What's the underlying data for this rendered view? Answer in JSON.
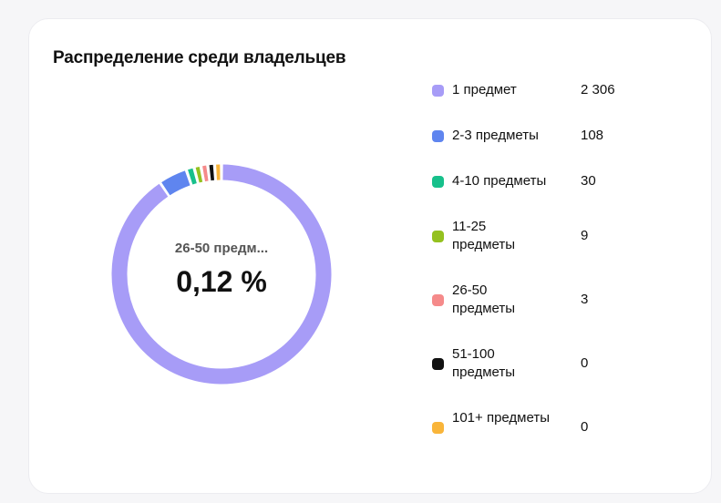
{
  "card": {
    "title": "Распределение среди владельцев"
  },
  "donut": {
    "center_label": "26-50 предм...",
    "center_value": "0,12 %"
  },
  "chart_data": {
    "type": "pie",
    "title": "Распределение среди владельцев",
    "categories": [
      "1 предмет",
      "2-3 предметы",
      "4-10 предметы",
      "11-25 предметы",
      "26-50 предметы",
      "51-100 предметы",
      "101+ предметы"
    ],
    "value_labels": [
      "2 306",
      "108",
      "30",
      "9",
      "3",
      "0",
      "0"
    ],
    "values": [
      2306,
      108,
      30,
      9,
      3,
      0,
      0
    ],
    "colors": [
      "#a79cf7",
      "#5f85ef",
      "#17c08b",
      "#94c11f",
      "#f58a8a",
      "#111111",
      "#f9b53a"
    ],
    "highlighted": "26-50 предметы",
    "legend_position": "right"
  }
}
